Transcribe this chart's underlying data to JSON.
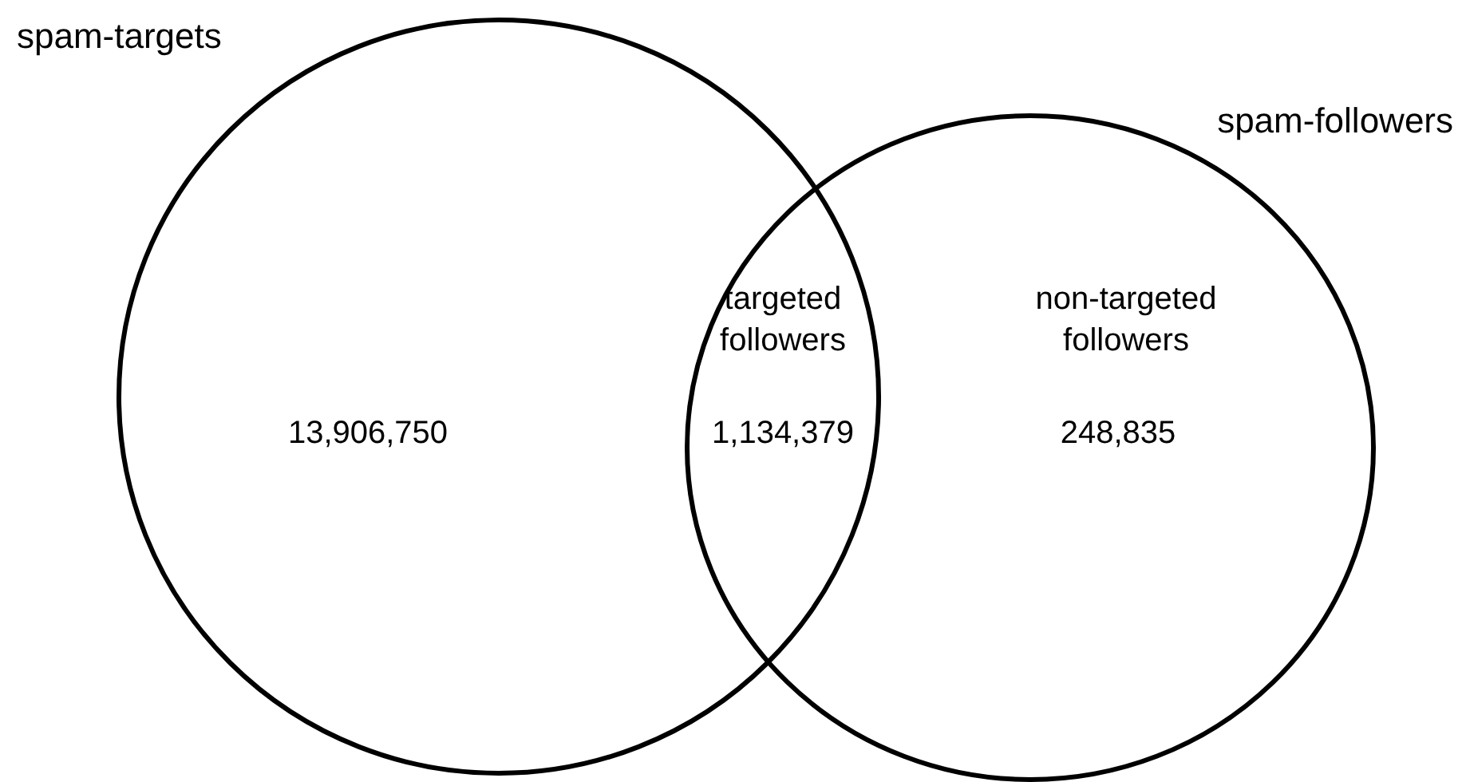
{
  "chart_data": {
    "type": "other",
    "categories": [
      null,
      "targeted followers",
      "non-targeted followers"
    ],
    "values": [
      13906750,
      1134379,
      248835
    ],
    "value_labels": [
      "13,906,750",
      "1,134,379",
      "248,835"
    ],
    "annotations": [
      "spam-targets",
      "spam-followers"
    ]
  }
}
